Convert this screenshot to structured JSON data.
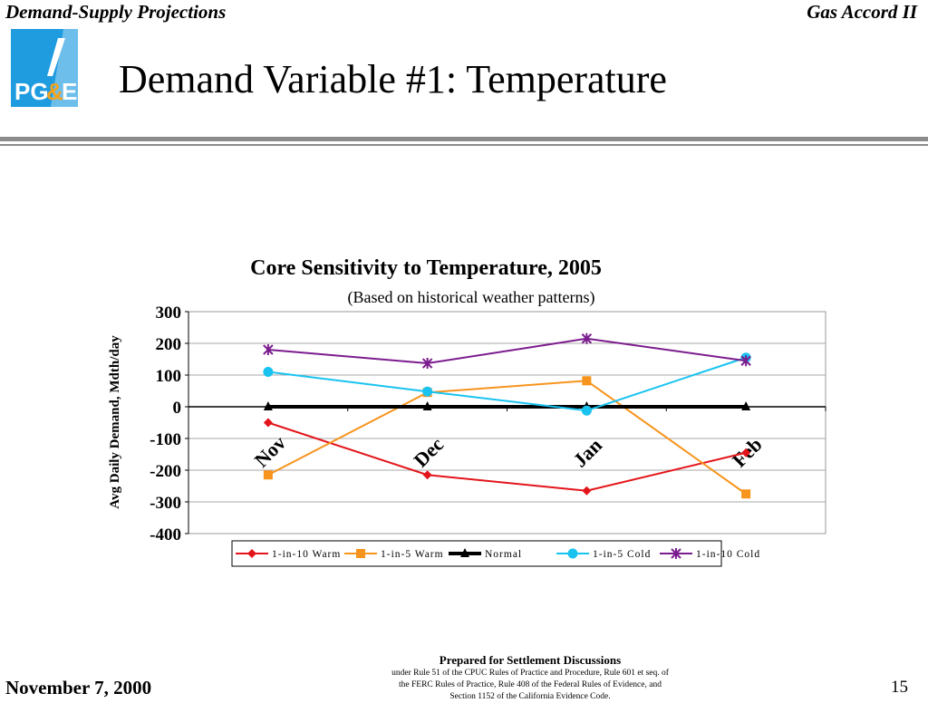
{
  "header": {
    "left": "Demand-Supply Projections",
    "right": "Gas Accord II"
  },
  "logo": {
    "text": "PG&E",
    "colors": {
      "background": "#1f9be0",
      "text": "#ffffff",
      "ampersand": "#f5a31a"
    }
  },
  "slide_title": "Demand Variable #1:  Temperature",
  "footer": {
    "date": "November 7, 2000",
    "page_number": "15",
    "center_title": "Prepared for Settlement Discussions",
    "center_lines": [
      "under Rule 51 of the CPUC Rules of Practice and Procedure, Rule 601 et seq. of",
      "the FERC Rules of Practice, Rule 408 of the Federal Rules of Evidence, and",
      "Section 1152 of the California Evidence Code."
    ]
  },
  "chart_data": {
    "type": "line",
    "title": "Core Sensitivity to Temperature, 2005",
    "subtitle": "(Based on historical weather patterns)",
    "ylabel": "Avg Daily Demand, Mdth/day",
    "xlabel": "",
    "ylim": [
      -400,
      300
    ],
    "yticks": [
      300,
      200,
      100,
      0,
      -100,
      -200,
      -300,
      -400
    ],
    "categories": [
      "Nov",
      "Dec",
      "Jan",
      "Feb"
    ],
    "grid": true,
    "legend_position": "bottom",
    "series": [
      {
        "name": "1-in-10 Warm",
        "color": "#e3151a",
        "marker": "diamond",
        "values": [
          -50,
          -215,
          -265,
          -145
        ]
      },
      {
        "name": "1-in-5 Warm",
        "color": "#f7941d",
        "marker": "square",
        "values": [
          -215,
          45,
          82,
          -275
        ]
      },
      {
        "name": "Normal",
        "color": "#000000",
        "marker": "triangle",
        "values": [
          0,
          0,
          0,
          0
        ]
      },
      {
        "name": "1-in-5 Cold",
        "color": "#19c3f0",
        "marker": "circle",
        "values": [
          110,
          48,
          -12,
          155
        ]
      },
      {
        "name": "1-in-10 Cold",
        "color": "#7b1c8e",
        "marker": "star",
        "values": [
          180,
          137,
          215,
          145
        ]
      }
    ]
  }
}
